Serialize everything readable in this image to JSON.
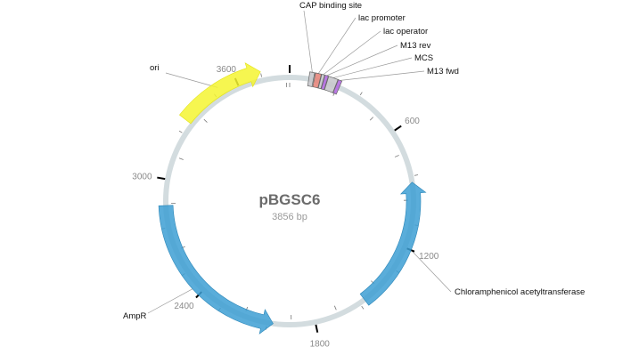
{
  "plasmid": {
    "name": "pBGSC6",
    "length_label": "3856 bp",
    "length": 3856,
    "backbone_color": "#d3dcdf"
  },
  "ticks": {
    "labeled": [
      {
        "pos": 600,
        "label": "600"
      },
      {
        "pos": 1200,
        "label": "1200"
      },
      {
        "pos": 1800,
        "label": "1800"
      },
      {
        "pos": 2400,
        "label": "2400"
      },
      {
        "pos": 3000,
        "label": "3000"
      },
      {
        "pos": 3600,
        "label": "3600"
      }
    ],
    "minor_step": 120
  },
  "features": [
    {
      "name": "ori",
      "start": 3300,
      "end": 3720,
      "strand": 1,
      "color": "#f5f531",
      "kind": "arrow",
      "ring": "outer"
    },
    {
      "name": "Chloramphenicol acetyltransferase",
      "start": 870,
      "end": 1530,
      "strand": -1,
      "color": "#3d9fd3",
      "kind": "arrow",
      "ring": "main"
    },
    {
      "name": "AmpR",
      "start": 2010,
      "end": 2870,
      "strand": -1,
      "color": "#3d9fd3",
      "kind": "arrow",
      "ring": "main"
    },
    {
      "name": "CAP binding site",
      "start": 95,
      "end": 118,
      "strand": 0,
      "color": "#c8c8cc",
      "kind": "box",
      "ring": "main"
    },
    {
      "name": "lac promoter",
      "start": 122,
      "end": 150,
      "strand": 0,
      "color": "#e6867c",
      "kind": "box",
      "ring": "main"
    },
    {
      "name": "lac operator",
      "start": 152,
      "end": 166,
      "strand": 0,
      "color": "#c8c8cc",
      "kind": "box",
      "ring": "main"
    },
    {
      "name": "M13 rev",
      "start": 168,
      "end": 184,
      "strand": 0,
      "color": "#b36ae0",
      "kind": "box",
      "ring": "main"
    },
    {
      "name": "MCS",
      "start": 186,
      "end": 232,
      "strand": 0,
      "color": "#c8c8cc",
      "kind": "box",
      "ring": "main"
    },
    {
      "name": "M13 fwd",
      "start": 234,
      "end": 252,
      "strand": 0,
      "color": "#b36ae0",
      "kind": "box",
      "ring": "main"
    }
  ]
}
